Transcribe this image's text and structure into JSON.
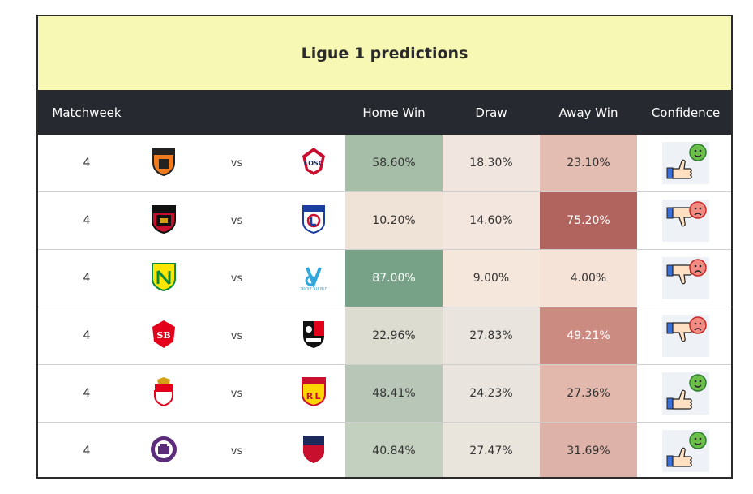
{
  "title": "Ligue 1 predictions",
  "headers": {
    "matchweek": "Matchweek",
    "home_win": "Home Win",
    "draw": "Draw",
    "away_win": "Away Win",
    "confidence": "Confidence"
  },
  "colors": {
    "header_bg": "#262a30",
    "title_bg": "#f7f8b3",
    "positive": "#4caf50",
    "negative": "#e05a5a"
  },
  "rows": [
    {
      "matchweek": "4",
      "vs": "vs",
      "home_logo": "lorient-logo",
      "away_logo": "lille-logo",
      "home_win": "58.60%",
      "draw": "18.30%",
      "away_win": "23.10%",
      "home_bg": "#a6bea8",
      "draw_bg": "#f1e6df",
      "away_bg": "#e3bcb2",
      "home_fg": "#333",
      "draw_fg": "#333",
      "away_fg": "#333",
      "confidence": "positive"
    },
    {
      "matchweek": "4",
      "vs": "vs",
      "home_logo": "nice-logo",
      "away_logo": "lyon-logo",
      "home_win": "10.20%",
      "draw": "14.60%",
      "away_win": "75.20%",
      "home_bg": "#efe2d6",
      "draw_bg": "#f3e6de",
      "away_bg": "#b1635d",
      "home_fg": "#333",
      "draw_fg": "#333",
      "away_fg": "#ffffff",
      "confidence": "negative"
    },
    {
      "matchweek": "4",
      "vs": "vs",
      "home_logo": "nantes-logo",
      "away_logo": "marseille-logo",
      "home_win": "87.00%",
      "draw": "9.00%",
      "away_win": "4.00%",
      "home_bg": "#78a287",
      "draw_bg": "#f6e7dd",
      "away_bg": "#f6e3d7",
      "home_fg": "#ffffff",
      "draw_fg": "#333",
      "away_fg": "#333",
      "confidence": "negative"
    },
    {
      "matchweek": "4",
      "vs": "vs",
      "home_logo": "brest-logo",
      "away_logo": "rennes-logo",
      "home_win": "22.96%",
      "draw": "27.83%",
      "away_win": "49.21%",
      "home_bg": "#dcdcd0",
      "draw_bg": "#e9e5de",
      "away_bg": "#cc8b81",
      "home_fg": "#333",
      "draw_fg": "#333",
      "away_fg": "#ffffff",
      "confidence": "negative"
    },
    {
      "matchweek": "4",
      "vs": "vs",
      "home_logo": "monaco-logo",
      "away_logo": "lens-logo",
      "home_win": "48.41%",
      "draw": "24.23%",
      "away_win": "27.36%",
      "home_bg": "#b8c6b7",
      "draw_bg": "#e9e4dd",
      "away_bg": "#e2b7ac",
      "home_fg": "#333",
      "draw_fg": "#333",
      "away_fg": "#333",
      "confidence": "positive"
    },
    {
      "matchweek": "4",
      "vs": "vs",
      "home_logo": "toulouse-logo",
      "away_logo": "clermont-logo",
      "home_win": "40.84%",
      "draw": "27.47%",
      "away_win": "31.69%",
      "home_bg": "#c3cfbf",
      "draw_bg": "#e9e5dd",
      "away_bg": "#ddb2a8",
      "home_fg": "#333",
      "draw_fg": "#333",
      "away_fg": "#333",
      "confidence": "positive"
    }
  ]
}
